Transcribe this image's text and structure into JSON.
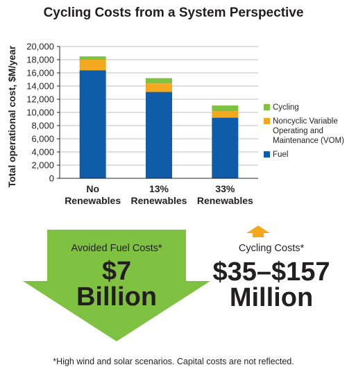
{
  "chart_data": {
    "type": "bar",
    "stacked": true,
    "title": "Cycling Costs from a System Perspective",
    "ylabel": "Total operational cost, $M/year",
    "xlabel": "",
    "ylim": [
      0,
      20000
    ],
    "yticks": [
      "0",
      "2,000",
      "4,000",
      "6,000",
      "8,000",
      "10,000",
      "12,000",
      "14,000",
      "16,000",
      "18,000",
      "20,000"
    ],
    "grid": true,
    "legend_position": "right",
    "categories": [
      "No Renewables",
      "13% Renewables",
      "33% Renewables"
    ],
    "series": [
      {
        "name": "Fuel",
        "color": "#0f5ca8",
        "values": [
          16400,
          13100,
          9200
        ]
      },
      {
        "name": "Noncyclic Variable Operating and Maintenance (VOM)",
        "color": "#f4a81d",
        "values": [
          1600,
          1300,
          1000
        ]
      },
      {
        "name": "Cycling",
        "color": "#7fc141",
        "values": [
          500,
          800,
          850
        ]
      }
    ],
    "legend": [
      {
        "name": "Cycling",
        "color": "#7fc141"
      },
      {
        "name": "Noncyclic Variable Operating and Maintenance (VOM)",
        "color": "#f4a81d"
      },
      {
        "name": "Fuel",
        "color": "#0f5ca8"
      }
    ]
  },
  "summary": {
    "avoided_label": "Avoided Fuel Costs*",
    "avoided_value_line1": "$7",
    "avoided_value_line2": "Billion",
    "arrow_green": "#7fc141",
    "cycling_label": "Cycling Costs*",
    "cycling_value_line1": "$35–$157",
    "cycling_value_line2": "Million",
    "arrow_orange": "#f4a81d"
  },
  "footnote": "*High wind and solar scenarios. Capital costs are not reflected."
}
